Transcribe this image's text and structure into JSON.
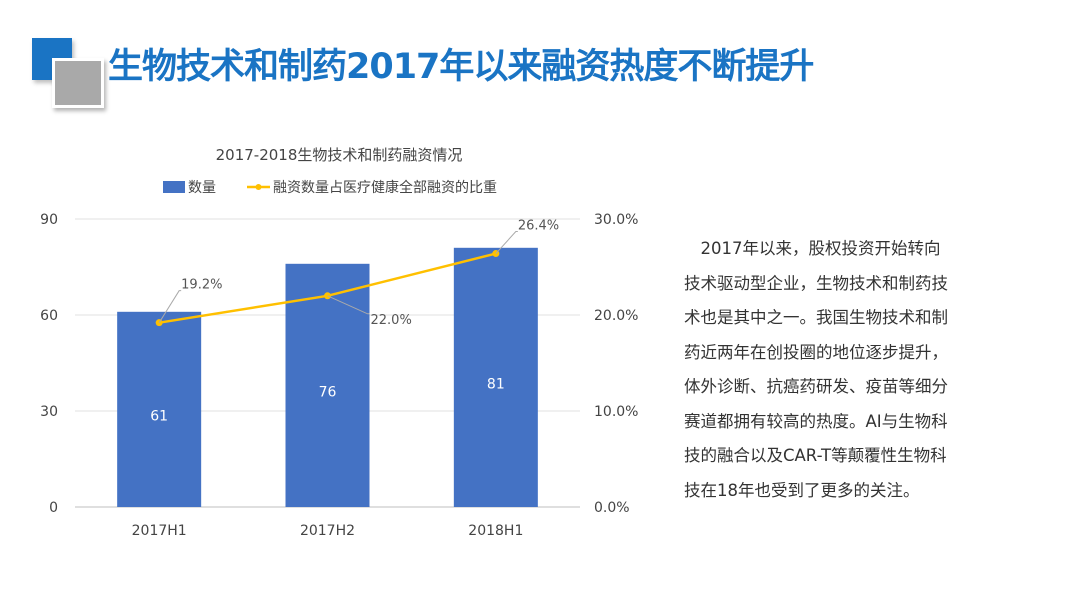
{
  "page_title": "生物技术和制药2017年以来融资热度不断提升",
  "paragraph_lines": [
    "　2017年以来，股权投资开始转向",
    "技术驱动型企业，生物技术和制药技",
    "术也是其中之一。我国生物技术和制",
    "药近两年在创投圈的地位逐步提升，",
    "体外诊断、抗癌药研发、疫苗等细分",
    "赛道都拥有较高的热度。AI与生物科",
    "技的融合以及CAR-T等颠覆性生物科",
    "技在18年也受到了更多的关注。"
  ],
  "colors": {
    "accent": "#1a74c4",
    "bar": "#4472c4",
    "line": "#ffc000"
  },
  "chart_data": {
    "type": "bar+line",
    "title": "2017-2018生物技术和制药融资情况",
    "categories": [
      "2017H1",
      "2017H2",
      "2018H1"
    ],
    "series": [
      {
        "name": "数量",
        "type": "bar",
        "axis": "left",
        "values": [
          61,
          76,
          81
        ],
        "data_labels": [
          "61",
          "76",
          "81"
        ]
      },
      {
        "name": "融资数量占医疗健康全部融资的比重",
        "type": "line",
        "axis": "right",
        "values": [
          19.2,
          22.0,
          26.4
        ],
        "data_labels": [
          "19.2%",
          "22.0%",
          "26.4%"
        ]
      }
    ],
    "left_axis": {
      "range": [
        0,
        90
      ],
      "ticks": [
        "0",
        "30",
        "60",
        "90"
      ]
    },
    "right_axis": {
      "range": [
        0,
        30
      ],
      "ticks": [
        "0.0%",
        "10.0%",
        "20.0%",
        "30.0%"
      ]
    },
    "legend": "top",
    "grid": true
  }
}
